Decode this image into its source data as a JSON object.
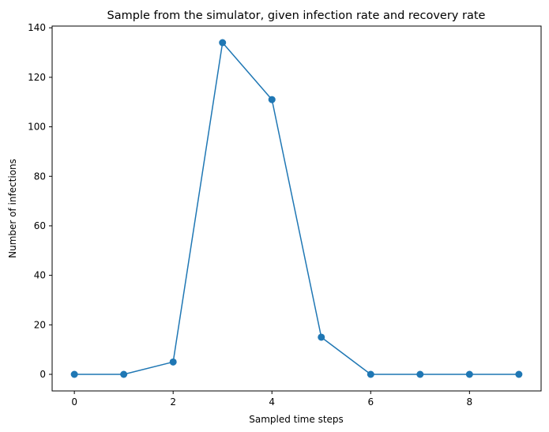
{
  "chart_data": {
    "type": "line",
    "title": "Sample from the simulator, given infection rate and recovery rate",
    "xlabel": "Sampled time steps",
    "ylabel": "Number of infections",
    "x": [
      0,
      1,
      2,
      3,
      4,
      5,
      6,
      7,
      8,
      9
    ],
    "series": [
      {
        "values": [
          0,
          0,
          5,
          134,
          111,
          15,
          0,
          0,
          0,
          0
        ],
        "color": "#1f77b4",
        "marker": "circle"
      }
    ],
    "xlim": [
      -0.45,
      9.45
    ],
    "ylim": [
      -6.7,
      140.7
    ],
    "xticks": [
      0,
      2,
      4,
      6,
      8
    ],
    "yticks": [
      0,
      20,
      40,
      60,
      80,
      100,
      120,
      140
    ],
    "grid": false,
    "legend": "none"
  }
}
